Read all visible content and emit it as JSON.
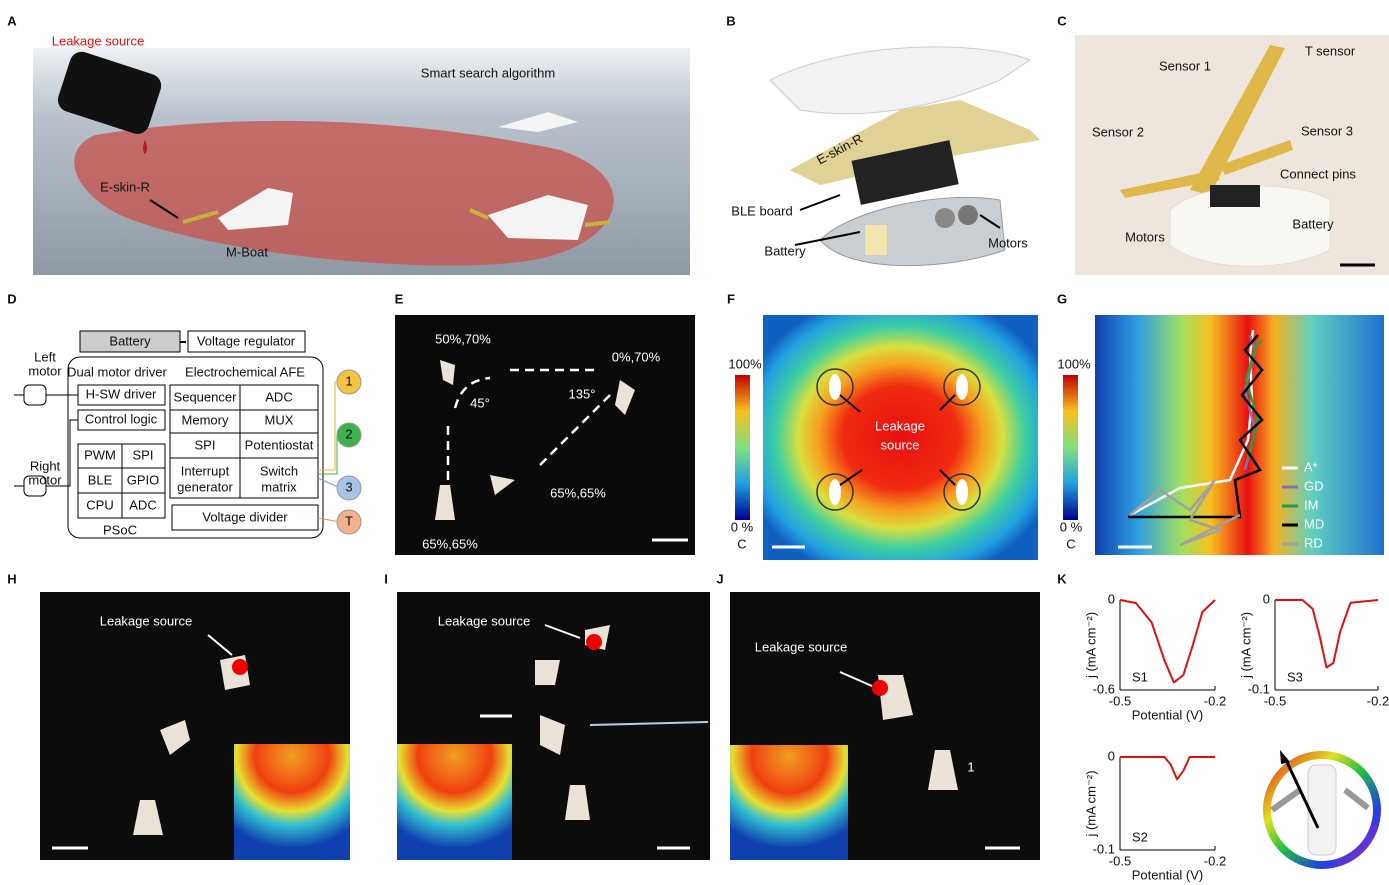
{
  "letters": [
    "A",
    "B",
    "C",
    "D",
    "E",
    "F",
    "G",
    "H",
    "I",
    "J",
    "K"
  ],
  "a": {
    "source": "Leakage source",
    "algorithm": "Smart search algorithm",
    "skin": "E-skin-R",
    "boat": "M-Boat"
  },
  "b": {
    "skin": "E-skin-R",
    "board": "BLE board",
    "battery": "Battery",
    "motors": "Motors"
  },
  "c": {
    "sensor1": "Sensor 1",
    "tsensor": "T sensor",
    "sensor2": "Sensor 2",
    "sensor3": "Sensor 3",
    "pins": "Connect pins",
    "motors": "Motors",
    "battery": "Battery"
  },
  "d": {
    "battery": "Battery",
    "regulator": "Voltage regulator",
    "left": [
      "Left",
      "motor"
    ],
    "right": [
      "Right",
      "motor"
    ],
    "driver": "Dual motor driver",
    "afe": "Electrochemical AFE",
    "hsw": "H-SW driver",
    "control": "Control logic",
    "pwm": "PWM",
    "spi1": "SPI",
    "ble": "BLE",
    "gpio": "GPIO",
    "cpu": "CPU",
    "adc1": "ADC",
    "sequencer": "Sequencer",
    "adc2": "ADC",
    "memory": "Memory",
    "mux": "MUX",
    "spi2": "SPI",
    "potentiostat": "Potentiostat",
    "interrupt": [
      "Interrupt",
      "generator"
    ],
    "switch": [
      "Switch",
      "matrix"
    ],
    "divider": "Voltage divider",
    "psoc": "PSoC",
    "pins": [
      "1",
      "2",
      "3",
      "T"
    ]
  },
  "e": {
    "p1": "50%,70%",
    "p2": "0%,70%",
    "a1": "45°",
    "a2": "135°",
    "p3": "65%,65%",
    "p4": "65%,65%"
  },
  "f": {
    "max": "100%",
    "min": "0 %",
    "unit": "C",
    "source": [
      "Leakage",
      "source"
    ]
  },
  "g": {
    "max": "100%",
    "min": "0 %",
    "unit": "C",
    "legend": [
      {
        "name": "A*",
        "color": "#ffffff"
      },
      {
        "name": "GD",
        "color": "#8a6fb0"
      },
      {
        "name": "IM",
        "color": "#2e9c3a"
      },
      {
        "name": "MD",
        "color": "#000000"
      },
      {
        "name": "RD",
        "color": "#a0a0a0"
      }
    ]
  },
  "h": {
    "source": "Leakage source"
  },
  "i": {
    "source": "Leakage source"
  },
  "j": {
    "source": "Leakage source",
    "boat": "1"
  },
  "chart_data": [
    {
      "type": "line",
      "title": "S1",
      "xlabel": "Potential (V)",
      "ylabel": "j (mA cm⁻²)",
      "color": "#e01010",
      "xlim": [
        -0.5,
        -0.2
      ],
      "xticks": [
        -0.5,
        -0.2
      ],
      "ylim": [
        -0.6,
        0
      ],
      "yticks": [
        0,
        -0.6
      ],
      "x": [
        -0.5,
        -0.45,
        -0.4,
        -0.36,
        -0.33,
        -0.3,
        -0.27,
        -0.24,
        -0.2
      ],
      "values": [
        0,
        -0.02,
        -0.15,
        -0.4,
        -0.55,
        -0.5,
        -0.3,
        -0.08,
        0
      ]
    },
    {
      "type": "line",
      "title": "S3",
      "ylabel": "j (mA cm⁻²)",
      "color": "#e01010",
      "xlim": [
        -0.5,
        -0.2
      ],
      "xticks": [
        -0.5,
        -0.2
      ],
      "ylim": [
        -0.1,
        0
      ],
      "yticks": [
        0,
        -0.1
      ],
      "x": [
        -0.5,
        -0.42,
        -0.39,
        -0.37,
        -0.35,
        -0.33,
        -0.31,
        -0.28,
        -0.2
      ],
      "values": [
        0,
        0,
        -0.01,
        -0.04,
        -0.075,
        -0.07,
        -0.035,
        -0.003,
        0
      ]
    },
    {
      "type": "line",
      "title": "S2",
      "xlabel": "Potential (V)",
      "ylabel": "j (mA cm⁻²)",
      "color": "#e01010",
      "xlim": [
        -0.5,
        -0.2
      ],
      "xticks": [
        -0.5,
        -0.2
      ],
      "ylim": [
        -0.1,
        0
      ],
      "yticks": [
        0,
        -0.1
      ],
      "x": [
        -0.5,
        -0.36,
        -0.34,
        -0.32,
        -0.3,
        -0.28,
        -0.2
      ],
      "values": [
        0,
        0,
        -0.008,
        -0.024,
        -0.015,
        0,
        0
      ]
    }
  ]
}
